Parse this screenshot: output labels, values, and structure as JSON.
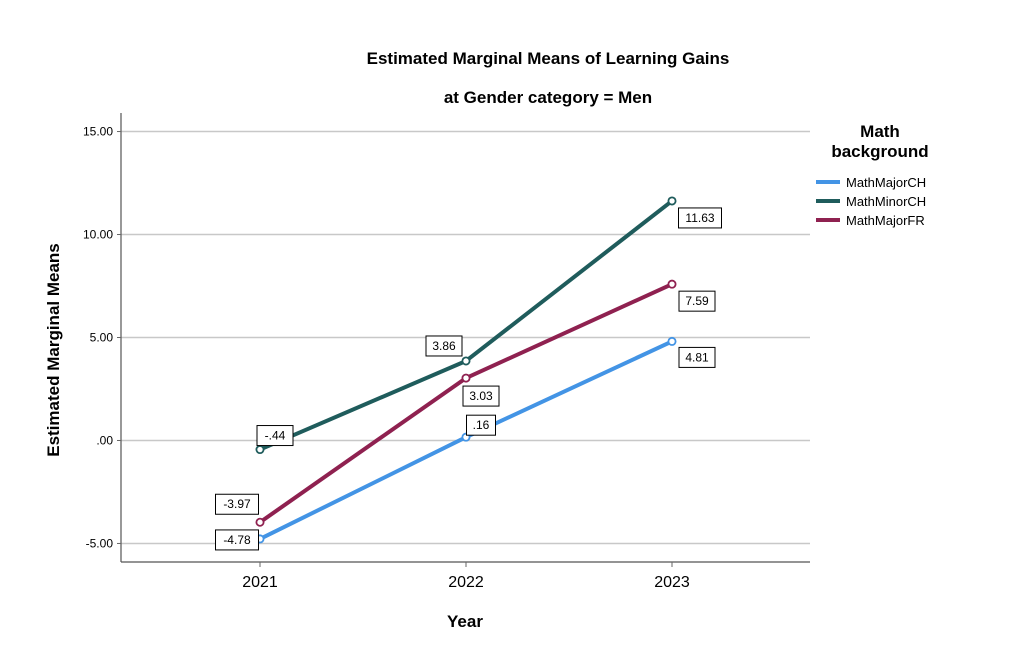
{
  "chart_data": {
    "type": "line",
    "title": "Estimated Marginal Means of Learning Gains",
    "subtitle": "at Gender category = Men",
    "xlabel": "Year",
    "ylabel": "Estimated Marginal Means",
    "categories": [
      "2021",
      "2022",
      "2023"
    ],
    "ylim": [
      -5.9,
      15.9
    ],
    "yticks": [
      15,
      10,
      5,
      0,
      -5
    ],
    "ytick_labels": [
      "15.00",
      "10.00",
      "5.00",
      ".00",
      "-5.00"
    ],
    "grid": true,
    "legend": {
      "title_lines": [
        "Math",
        "background"
      ],
      "placement": "right"
    },
    "series": [
      {
        "name": "MathMajorCH",
        "color": "#4394e5",
        "values": [
          -4.78,
          0.16,
          4.81
        ],
        "labels": [
          "-4.78",
          ".16",
          "4.81"
        ]
      },
      {
        "name": "MathMinorCH",
        "color": "#1f5c5c",
        "values": [
          -0.44,
          3.86,
          11.63
        ],
        "labels": [
          "-.44",
          "3.86",
          "11.63"
        ]
      },
      {
        "name": "MathMajorFR",
        "color": "#8f2150",
        "values": [
          -3.97,
          3.03,
          7.59
        ],
        "labels": [
          "-3.97",
          "3.03",
          "7.59"
        ]
      }
    ]
  }
}
